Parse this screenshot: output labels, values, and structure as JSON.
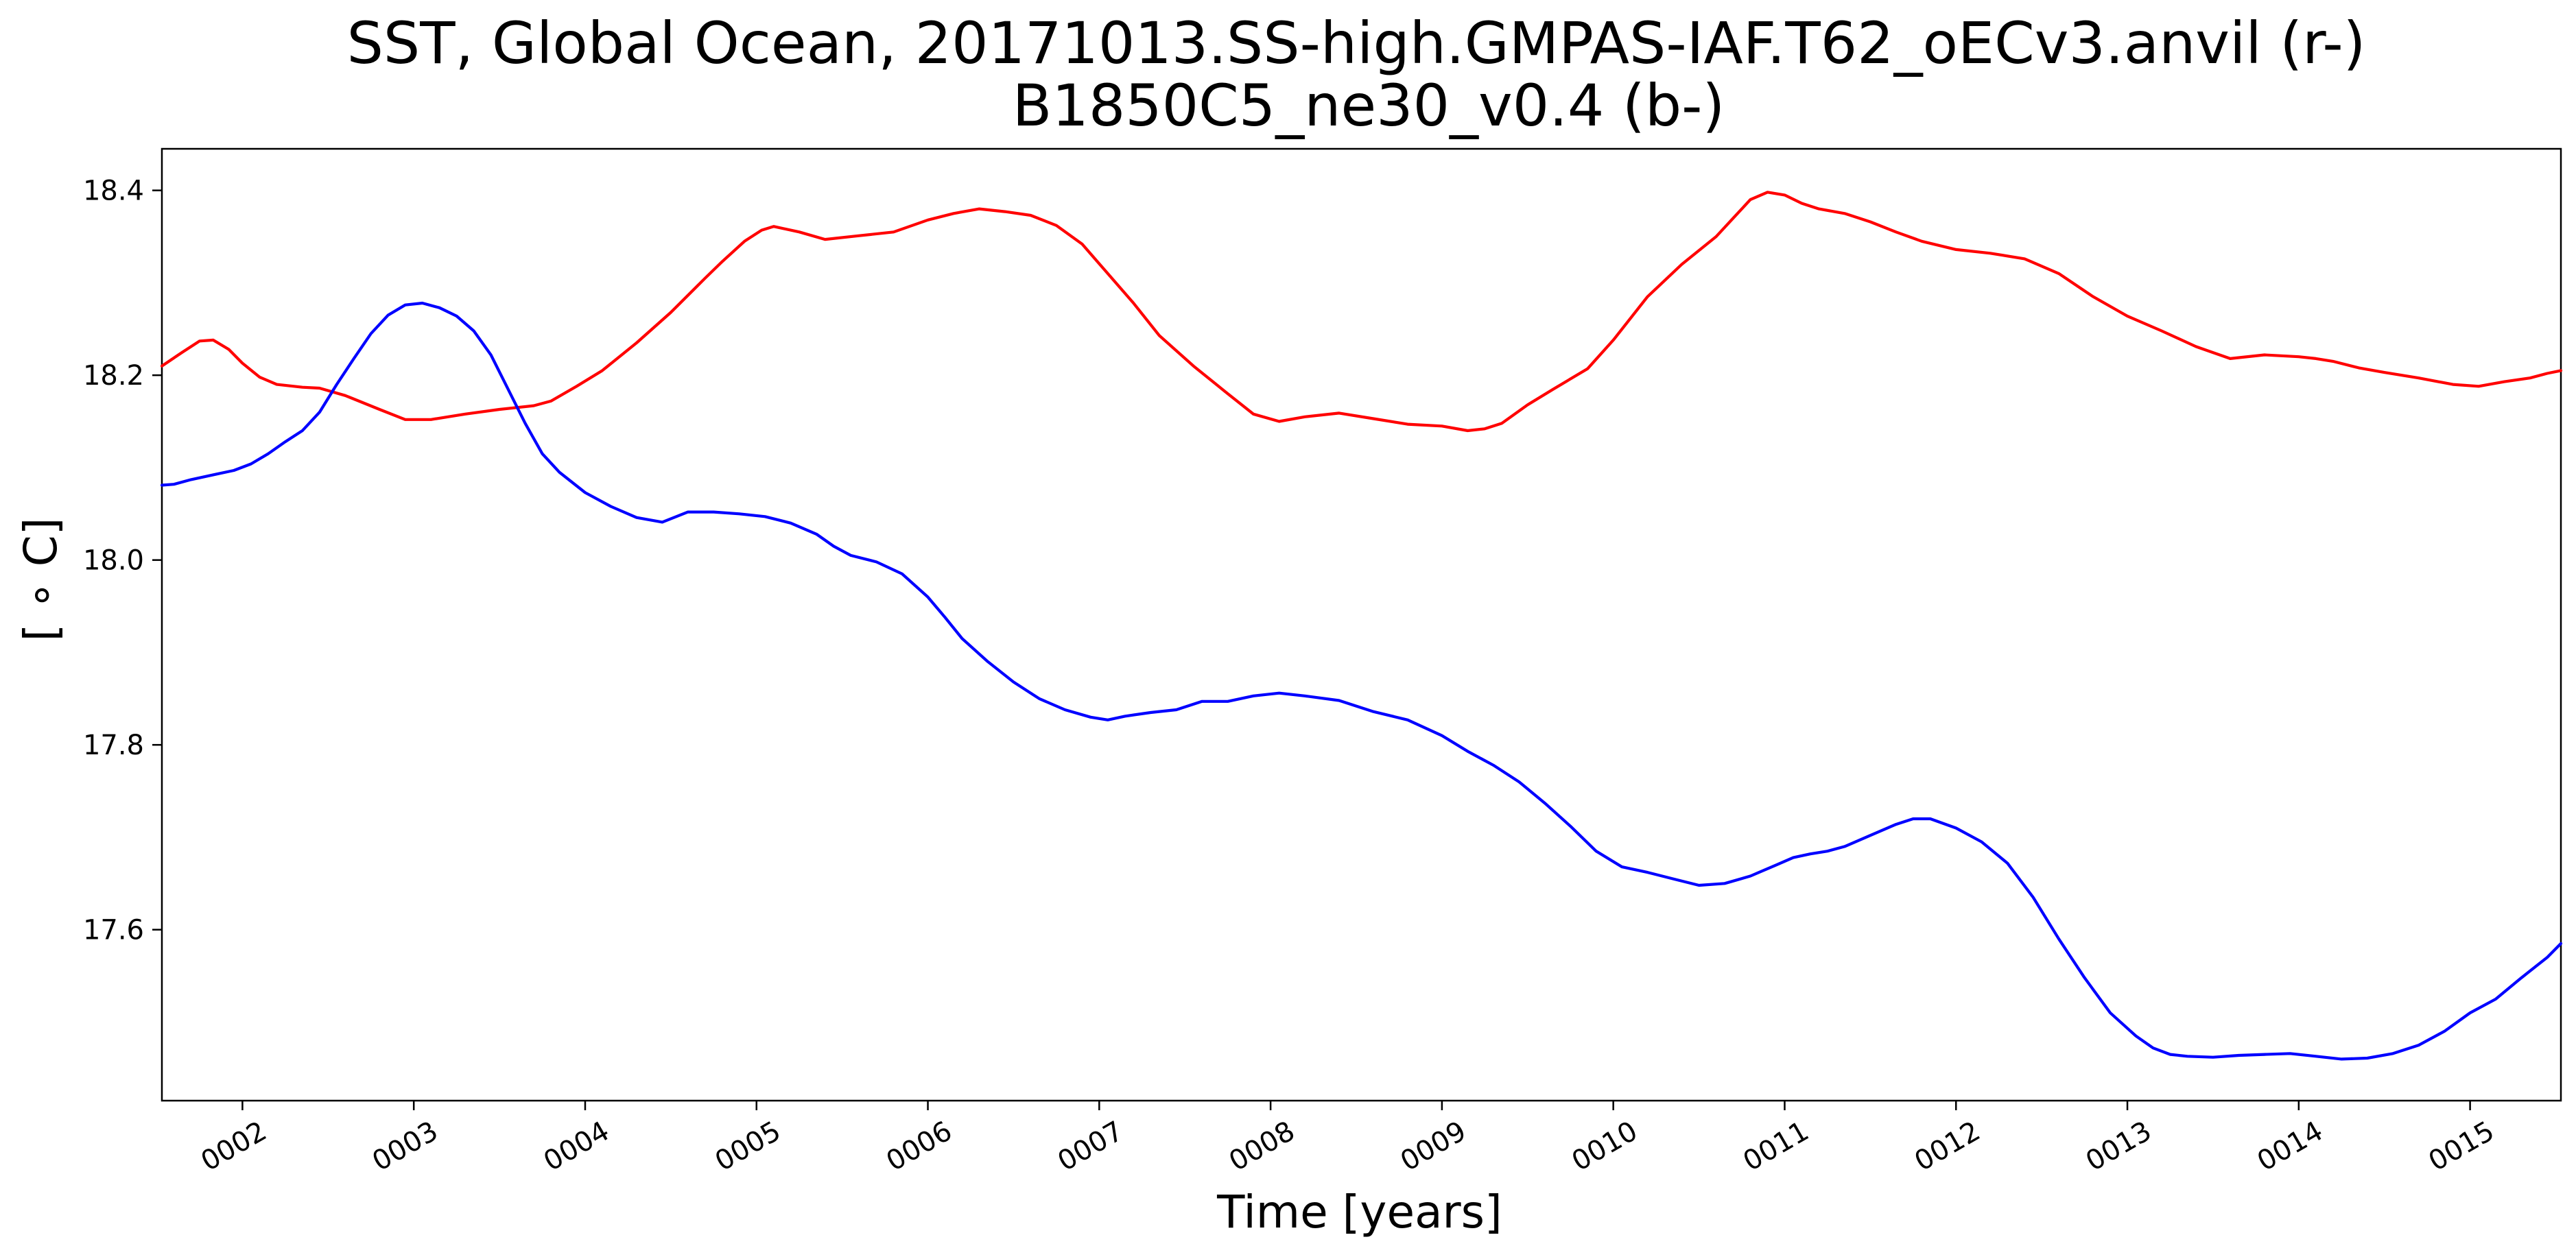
{
  "chart_data": {
    "type": "line",
    "title_line1": "SST, Global Ocean, 20171013.SS-high.GMPAS-IAF.T62_oECv3.anvil (r-)",
    "title_line2": "B1850C5_ne30_v0.4 (b-)",
    "xlabel": "Time [years]",
    "ylabel": "[ ∘ C]",
    "xlim": [
      1.53,
      15.53
    ],
    "ylim": [
      17.415,
      18.445
    ],
    "x_ticks": [
      2,
      3,
      4,
      5,
      6,
      7,
      8,
      9,
      10,
      11,
      12,
      13,
      14,
      15
    ],
    "x_tick_labels": [
      "0002",
      "0003",
      "0004",
      "0005",
      "0006",
      "0007",
      "0008",
      "0009",
      "0010",
      "0011",
      "0012",
      "0013",
      "0014",
      "0015"
    ],
    "y_ticks": [
      17.6,
      17.8,
      18.0,
      18.2,
      18.4
    ],
    "y_tick_labels": [
      "17.6",
      "17.8",
      "18.0",
      "18.2",
      "18.4"
    ],
    "grid": false,
    "series": [
      {
        "color": "#ff0000",
        "x": [
          1.53,
          1.65,
          1.75,
          1.83,
          1.92,
          2.0,
          2.1,
          2.2,
          2.35,
          2.45,
          2.6,
          2.8,
          2.95,
          3.1,
          3.3,
          3.5,
          3.7,
          3.8,
          3.95,
          4.1,
          4.3,
          4.5,
          4.7,
          4.8,
          4.93,
          5.03,
          5.1,
          5.25,
          5.4,
          5.6,
          5.8,
          6.0,
          6.15,
          6.3,
          6.45,
          6.6,
          6.75,
          6.9,
          7.05,
          7.2,
          7.35,
          7.55,
          7.75,
          7.9,
          8.05,
          8.2,
          8.4,
          8.6,
          8.8,
          9.0,
          9.15,
          9.25,
          9.35,
          9.5,
          9.65,
          9.85,
          10.0,
          10.2,
          10.4,
          10.6,
          10.7,
          10.8,
          10.9,
          11.0,
          11.1,
          11.2,
          11.35,
          11.5,
          11.65,
          11.8,
          12.0,
          12.2,
          12.4,
          12.6,
          12.8,
          13.0,
          13.2,
          13.4,
          13.6,
          13.8,
          14.0,
          14.1,
          14.2,
          14.35,
          14.5,
          14.7,
          14.9,
          15.05,
          15.2,
          15.35,
          15.45,
          15.53
        ],
        "y": [
          18.21,
          18.225,
          18.237,
          18.238,
          18.228,
          18.213,
          18.198,
          18.19,
          18.187,
          18.186,
          18.178,
          18.163,
          18.152,
          18.152,
          18.158,
          18.163,
          18.167,
          18.172,
          18.188,
          18.205,
          18.235,
          18.268,
          18.305,
          18.323,
          18.345,
          18.357,
          18.361,
          18.355,
          18.347,
          18.351,
          18.355,
          18.368,
          18.375,
          18.38,
          18.377,
          18.373,
          18.362,
          18.342,
          18.31,
          18.278,
          18.243,
          18.21,
          18.18,
          18.158,
          18.15,
          18.155,
          18.159,
          18.153,
          18.147,
          18.145,
          18.14,
          18.142,
          18.148,
          18.168,
          18.185,
          18.207,
          18.238,
          18.285,
          18.32,
          18.35,
          18.37,
          18.39,
          18.398,
          18.395,
          18.386,
          18.38,
          18.375,
          18.366,
          18.355,
          18.345,
          18.336,
          18.332,
          18.326,
          18.31,
          18.285,
          18.264,
          18.248,
          18.231,
          18.218,
          18.222,
          18.22,
          18.218,
          18.215,
          18.208,
          18.203,
          18.197,
          18.19,
          18.188,
          18.193,
          18.197,
          18.202,
          18.205
        ]
      },
      {
        "color": "#0000ff",
        "x": [
          1.53,
          1.6,
          1.7,
          1.85,
          1.95,
          2.05,
          2.15,
          2.25,
          2.35,
          2.45,
          2.55,
          2.65,
          2.75,
          2.85,
          2.95,
          3.05,
          3.15,
          3.25,
          3.35,
          3.45,
          3.55,
          3.65,
          3.75,
          3.85,
          4.0,
          4.15,
          4.3,
          4.45,
          4.6,
          4.75,
          4.9,
          5.05,
          5.2,
          5.35,
          5.45,
          5.55,
          5.7,
          5.85,
          6.0,
          6.1,
          6.2,
          6.35,
          6.5,
          6.65,
          6.8,
          6.95,
          7.05,
          7.15,
          7.3,
          7.45,
          7.6,
          7.75,
          7.9,
          8.05,
          8.2,
          8.4,
          8.6,
          8.8,
          9.0,
          9.15,
          9.3,
          9.45,
          9.6,
          9.75,
          9.9,
          10.05,
          10.2,
          10.35,
          10.5,
          10.65,
          10.8,
          10.95,
          11.05,
          11.15,
          11.25,
          11.35,
          11.5,
          11.65,
          11.75,
          11.85,
          12.0,
          12.15,
          12.3,
          12.45,
          12.6,
          12.75,
          12.9,
          13.05,
          13.15,
          13.25,
          13.35,
          13.5,
          13.65,
          13.8,
          13.95,
          14.1,
          14.25,
          14.4,
          14.55,
          14.7,
          14.85,
          15.0,
          15.15,
          15.3,
          15.45,
          15.53
        ],
        "y": [
          18.081,
          18.082,
          18.087,
          18.093,
          18.097,
          18.104,
          18.115,
          18.128,
          18.14,
          18.16,
          18.19,
          18.218,
          18.245,
          18.265,
          18.276,
          18.278,
          18.273,
          18.264,
          18.248,
          18.222,
          18.185,
          18.148,
          18.115,
          18.095,
          18.073,
          18.058,
          18.046,
          18.041,
          18.052,
          18.052,
          18.05,
          18.047,
          18.04,
          18.028,
          18.015,
          18.005,
          17.998,
          17.985,
          17.96,
          17.938,
          17.915,
          17.89,
          17.868,
          17.85,
          17.838,
          17.83,
          17.827,
          17.831,
          17.835,
          17.838,
          17.847,
          17.847,
          17.853,
          17.856,
          17.853,
          17.848,
          17.836,
          17.827,
          17.81,
          17.793,
          17.778,
          17.76,
          17.737,
          17.712,
          17.685,
          17.668,
          17.662,
          17.655,
          17.648,
          17.65,
          17.658,
          17.67,
          17.678,
          17.682,
          17.685,
          17.69,
          17.702,
          17.714,
          17.72,
          17.72,
          17.71,
          17.695,
          17.672,
          17.635,
          17.59,
          17.548,
          17.51,
          17.485,
          17.472,
          17.465,
          17.463,
          17.462,
          17.464,
          17.465,
          17.466,
          17.463,
          17.46,
          17.461,
          17.466,
          17.475,
          17.49,
          17.51,
          17.525,
          17.548,
          17.57,
          17.585
        ]
      }
    ]
  }
}
